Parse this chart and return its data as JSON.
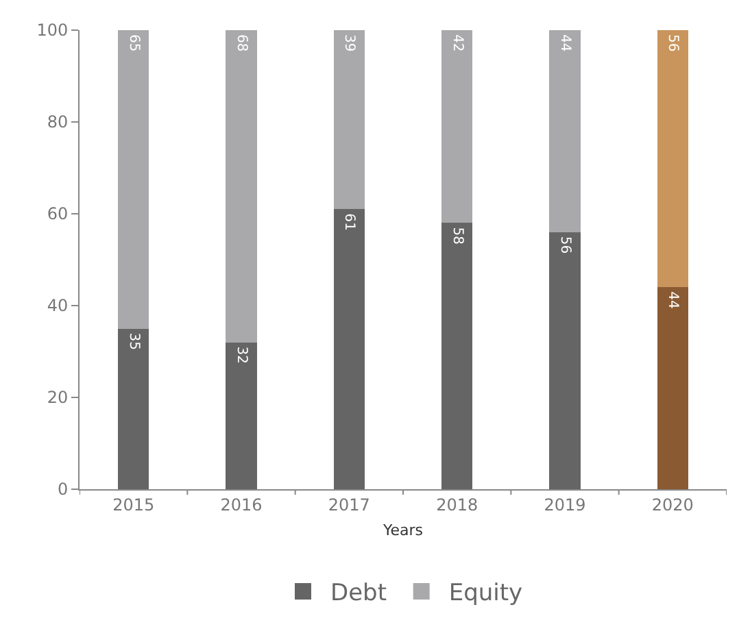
{
  "chart_data": {
    "type": "bar",
    "stacked": true,
    "xlabel": "Years",
    "categories": [
      "2015",
      "2016",
      "2017",
      "2018",
      "2019",
      "2020"
    ],
    "series": [
      {
        "name": "Debt",
        "colors": [
          "#656565",
          "#656565",
          "#656565",
          "#656565",
          "#656565",
          "#8a5a32"
        ],
        "values": [
          35,
          32,
          61,
          58,
          56,
          44
        ]
      },
      {
        "name": "Equity",
        "colors": [
          "#a9a9ab",
          "#a9a9ab",
          "#a9a9ab",
          "#a9a9ab",
          "#a9a9ab",
          "#c9955c"
        ],
        "values": [
          65,
          68,
          39,
          42,
          44,
          56
        ]
      }
    ],
    "ylim": [
      0,
      100
    ],
    "yticks": [
      0,
      20,
      40,
      60,
      80,
      100
    ],
    "legend": "bottom",
    "data_labels": true
  }
}
